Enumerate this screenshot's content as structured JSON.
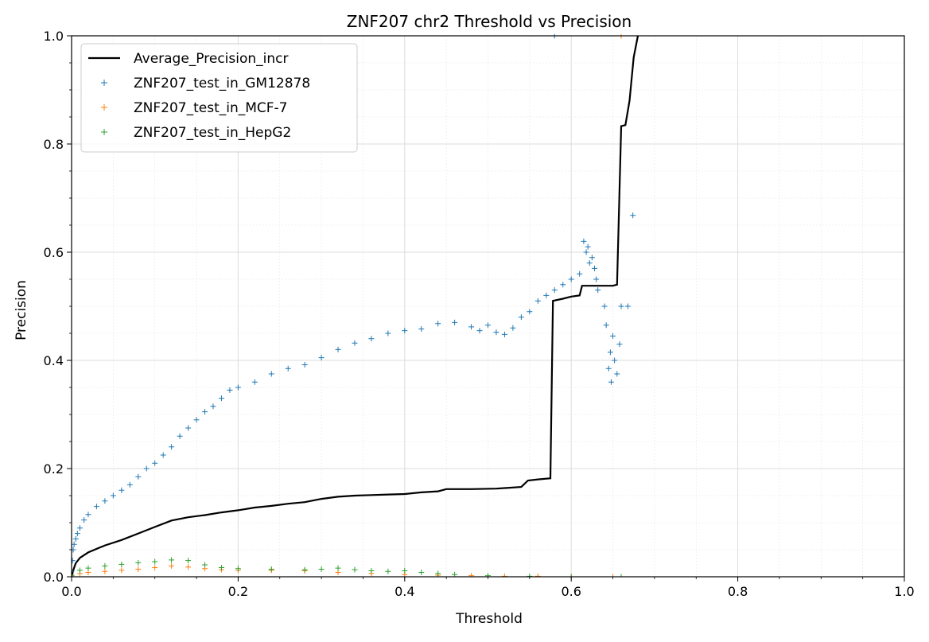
{
  "chart_data": {
    "type": "scatter",
    "title": "ZNF207 chr2 Threshold vs Precision",
    "xlabel": "Threshold",
    "ylabel": "Precision",
    "xlim": [
      0.0,
      1.0
    ],
    "ylim": [
      0.0,
      1.0
    ],
    "x_ticks": [
      "0.0",
      "0.2",
      "0.4",
      "0.6",
      "0.8",
      "1.0"
    ],
    "y_ticks": [
      "0.0",
      "0.2",
      "0.4",
      "0.6",
      "0.8",
      "1.0"
    ],
    "grid": true,
    "minor_grid": true,
    "legend_position": "top-left",
    "series": [
      {
        "name": "Average_Precision_incr",
        "kind": "line",
        "color": "#000000",
        "points": [
          [
            0.0,
            0.0
          ],
          [
            0.002,
            0.012
          ],
          [
            0.005,
            0.025
          ],
          [
            0.01,
            0.035
          ],
          [
            0.02,
            0.045
          ],
          [
            0.04,
            0.058
          ],
          [
            0.06,
            0.068
          ],
          [
            0.08,
            0.08
          ],
          [
            0.1,
            0.092
          ],
          [
            0.12,
            0.104
          ],
          [
            0.14,
            0.11
          ],
          [
            0.16,
            0.114
          ],
          [
            0.18,
            0.119
          ],
          [
            0.2,
            0.123
          ],
          [
            0.22,
            0.128
          ],
          [
            0.24,
            0.131
          ],
          [
            0.26,
            0.135
          ],
          [
            0.28,
            0.138
          ],
          [
            0.3,
            0.144
          ],
          [
            0.32,
            0.148
          ],
          [
            0.34,
            0.15
          ],
          [
            0.36,
            0.151
          ],
          [
            0.38,
            0.152
          ],
          [
            0.4,
            0.153
          ],
          [
            0.42,
            0.156
          ],
          [
            0.44,
            0.158
          ],
          [
            0.45,
            0.162
          ],
          [
            0.48,
            0.162
          ],
          [
            0.51,
            0.163
          ],
          [
            0.54,
            0.166
          ],
          [
            0.548,
            0.178
          ],
          [
            0.56,
            0.18
          ],
          [
            0.575,
            0.182
          ],
          [
            0.578,
            0.51
          ],
          [
            0.59,
            0.514
          ],
          [
            0.6,
            0.518
          ],
          [
            0.61,
            0.52
          ],
          [
            0.613,
            0.538
          ],
          [
            0.63,
            0.538
          ],
          [
            0.65,
            0.538
          ],
          [
            0.655,
            0.54
          ],
          [
            0.66,
            0.833
          ],
          [
            0.665,
            0.835
          ],
          [
            0.67,
            0.88
          ],
          [
            0.675,
            0.96
          ],
          [
            0.68,
            1.0
          ]
        ]
      },
      {
        "name": "ZNF207_test_in_GM12878",
        "kind": "scatter",
        "color": "#1f77b4",
        "points": [
          [
            0.0,
            0.01
          ],
          [
            0.001,
            0.03
          ],
          [
            0.002,
            0.05
          ],
          [
            0.003,
            0.06
          ],
          [
            0.005,
            0.07
          ],
          [
            0.007,
            0.08
          ],
          [
            0.01,
            0.09
          ],
          [
            0.015,
            0.105
          ],
          [
            0.02,
            0.115
          ],
          [
            0.03,
            0.13
          ],
          [
            0.04,
            0.14
          ],
          [
            0.05,
            0.15
          ],
          [
            0.06,
            0.16
          ],
          [
            0.07,
            0.17
          ],
          [
            0.08,
            0.185
          ],
          [
            0.09,
            0.2
          ],
          [
            0.1,
            0.21
          ],
          [
            0.11,
            0.225
          ],
          [
            0.12,
            0.24
          ],
          [
            0.13,
            0.26
          ],
          [
            0.14,
            0.275
          ],
          [
            0.15,
            0.29
          ],
          [
            0.16,
            0.305
          ],
          [
            0.17,
            0.315
          ],
          [
            0.18,
            0.33
          ],
          [
            0.19,
            0.345
          ],
          [
            0.2,
            0.35
          ],
          [
            0.22,
            0.36
          ],
          [
            0.24,
            0.375
          ],
          [
            0.26,
            0.385
          ],
          [
            0.28,
            0.392
          ],
          [
            0.3,
            0.405
          ],
          [
            0.32,
            0.42
          ],
          [
            0.34,
            0.432
          ],
          [
            0.36,
            0.44
          ],
          [
            0.38,
            0.45
          ],
          [
            0.4,
            0.455
          ],
          [
            0.42,
            0.458
          ],
          [
            0.44,
            0.468
          ],
          [
            0.46,
            0.47
          ],
          [
            0.48,
            0.462
          ],
          [
            0.49,
            0.455
          ],
          [
            0.5,
            0.465
          ],
          [
            0.51,
            0.452
          ],
          [
            0.52,
            0.448
          ],
          [
            0.53,
            0.46
          ],
          [
            0.54,
            0.48
          ],
          [
            0.55,
            0.49
          ],
          [
            0.56,
            0.51
          ],
          [
            0.57,
            0.52
          ],
          [
            0.58,
            0.53
          ],
          [
            0.59,
            0.54
          ],
          [
            0.6,
            0.55
          ],
          [
            0.61,
            0.56
          ],
          [
            0.615,
            0.62
          ],
          [
            0.618,
            0.6
          ],
          [
            0.62,
            0.61
          ],
          [
            0.622,
            0.58
          ],
          [
            0.625,
            0.59
          ],
          [
            0.628,
            0.57
          ],
          [
            0.63,
            0.55
          ],
          [
            0.632,
            0.53
          ],
          [
            0.64,
            0.5
          ],
          [
            0.642,
            0.465
          ],
          [
            0.645,
            0.385
          ],
          [
            0.647,
            0.415
          ],
          [
            0.648,
            0.36
          ],
          [
            0.65,
            0.445
          ],
          [
            0.652,
            0.4
          ],
          [
            0.655,
            0.375
          ],
          [
            0.658,
            0.43
          ],
          [
            0.66,
            0.5
          ],
          [
            0.668,
            0.5
          ],
          [
            0.674,
            0.668
          ],
          [
            0.58,
            1.0
          ]
        ]
      },
      {
        "name": "ZNF207_test_in_MCF-7",
        "kind": "scatter",
        "color": "#ff7f0e",
        "points": [
          [
            0.0,
            0.002
          ],
          [
            0.01,
            0.006
          ],
          [
            0.02,
            0.008
          ],
          [
            0.04,
            0.01
          ],
          [
            0.06,
            0.012
          ],
          [
            0.08,
            0.014
          ],
          [
            0.1,
            0.017
          ],
          [
            0.12,
            0.02
          ],
          [
            0.14,
            0.018
          ],
          [
            0.16,
            0.015
          ],
          [
            0.18,
            0.013
          ],
          [
            0.2,
            0.012
          ],
          [
            0.24,
            0.012
          ],
          [
            0.28,
            0.011
          ],
          [
            0.32,
            0.008
          ],
          [
            0.36,
            0.006
          ],
          [
            0.4,
            0.004
          ],
          [
            0.44,
            0.003
          ],
          [
            0.48,
            0.002
          ],
          [
            0.52,
            0.001
          ],
          [
            0.56,
            0.001
          ],
          [
            0.6,
            0.0
          ],
          [
            0.65,
            0.0
          ],
          [
            0.66,
            1.0
          ]
        ]
      },
      {
        "name": "ZNF207_test_in_HepG2",
        "kind": "scatter",
        "color": "#2ca02c",
        "points": [
          [
            0.0,
            0.003
          ],
          [
            0.01,
            0.012
          ],
          [
            0.02,
            0.016
          ],
          [
            0.04,
            0.02
          ],
          [
            0.06,
            0.023
          ],
          [
            0.08,
            0.026
          ],
          [
            0.1,
            0.028
          ],
          [
            0.12,
            0.031
          ],
          [
            0.14,
            0.03
          ],
          [
            0.16,
            0.022
          ],
          [
            0.18,
            0.017
          ],
          [
            0.2,
            0.015
          ],
          [
            0.24,
            0.014
          ],
          [
            0.28,
            0.013
          ],
          [
            0.3,
            0.014
          ],
          [
            0.32,
            0.016
          ],
          [
            0.34,
            0.013
          ],
          [
            0.36,
            0.011
          ],
          [
            0.38,
            0.01
          ],
          [
            0.4,
            0.011
          ],
          [
            0.42,
            0.008
          ],
          [
            0.44,
            0.006
          ],
          [
            0.46,
            0.004
          ],
          [
            0.5,
            0.002
          ],
          [
            0.55,
            0.001
          ],
          [
            0.6,
            0.0
          ],
          [
            0.66,
            0.0
          ]
        ]
      }
    ]
  }
}
